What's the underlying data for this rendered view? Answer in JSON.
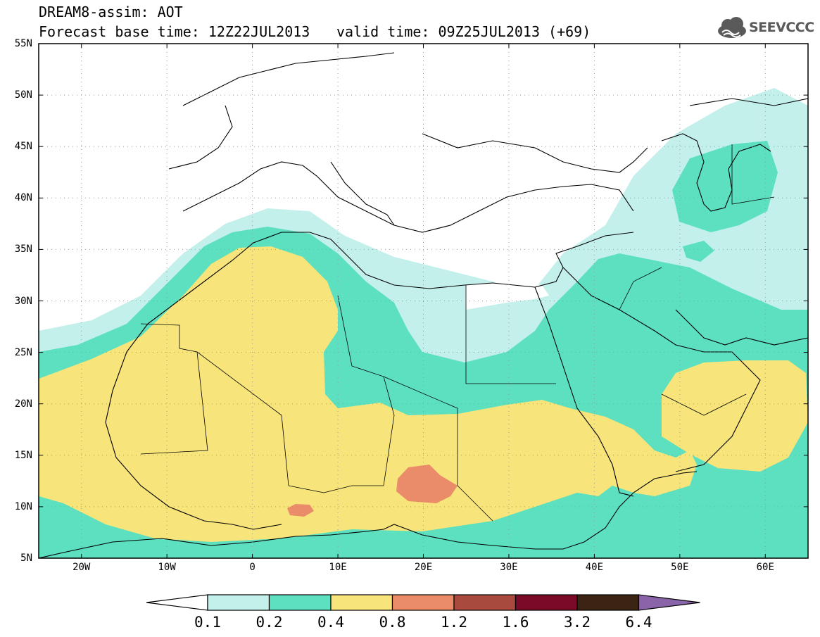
{
  "title": {
    "line1": "DREAM8-assim: AOT",
    "line2": "Forecast base time: 12Z22JUL2013",
    "valid": "valid time: 09Z25JUL2013 (+69)"
  },
  "logo": {
    "text": "SEEVCCC",
    "icon": "cloud-logo-icon"
  },
  "map": {
    "lon_range": [
      -25,
      65
    ],
    "lat_range": [
      5,
      55
    ],
    "lat_labels": [
      "55N",
      "50N",
      "45N",
      "40N",
      "35N",
      "30N",
      "25N",
      "20N",
      "15N",
      "10N",
      "5N"
    ],
    "lat_values": [
      55,
      50,
      45,
      40,
      35,
      30,
      25,
      20,
      15,
      10,
      5
    ],
    "lon_labels": [
      "20W",
      "10W",
      "0",
      "10E",
      "20E",
      "30E",
      "40E",
      "50E",
      "60E"
    ],
    "lon_values": [
      -20,
      -10,
      0,
      10,
      20,
      30,
      40,
      50,
      60
    ]
  },
  "colorbar": {
    "levels": [
      "0.1",
      "0.2",
      "0.4",
      "0.8",
      "1.2",
      "1.6",
      "3.2",
      "6.4"
    ],
    "colors": [
      "#ffffff",
      "#c4f0ec",
      "#5ce0c0",
      "#f7e47b",
      "#ea8b6a",
      "#a84a3e",
      "#7a0a26",
      "#3c2414",
      "#8a64a8"
    ]
  }
}
